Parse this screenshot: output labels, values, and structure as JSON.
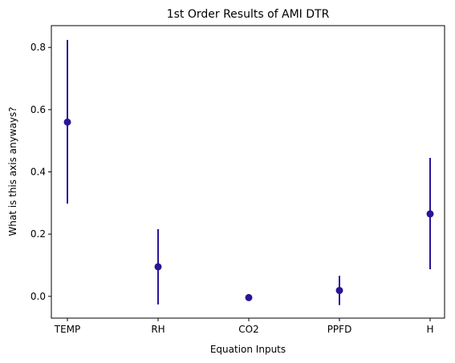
{
  "chart_data": {
    "type": "scatter",
    "title": "1st Order Results of AMI DTR",
    "xlabel": "Equation Inputs",
    "ylabel": "What is this axis anyways?",
    "categories": [
      "TEMP",
      "RH",
      "CO2",
      "PPFD",
      "H"
    ],
    "values": [
      0.56,
      0.095,
      -0.004,
      0.019,
      0.265
    ],
    "error_low": [
      0.298,
      -0.026,
      -0.006,
      -0.028,
      0.087
    ],
    "error_high": [
      0.824,
      0.216,
      -0.002,
      0.066,
      0.445
    ],
    "y_ticks": [
      "0.0",
      "0.2",
      "0.4",
      "0.6",
      "0.8"
    ],
    "y_tick_values": [
      0.0,
      0.2,
      0.4,
      0.6,
      0.8
    ],
    "ylim": [
      -0.07,
      0.87
    ],
    "marker_color": "#2a1399",
    "grid": false,
    "legend": "none"
  }
}
